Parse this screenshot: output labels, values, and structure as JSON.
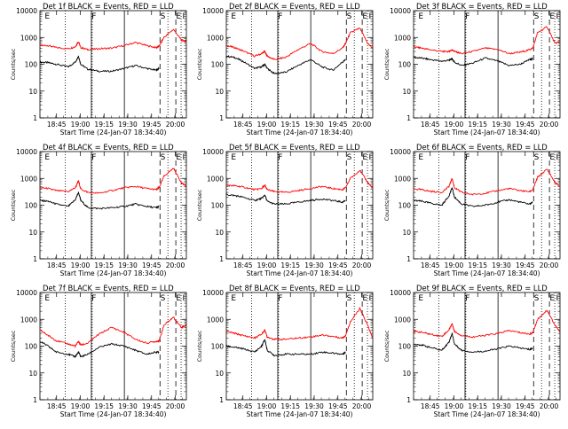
{
  "figure": {
    "start_label": "Start Time (24-Jan-07 18:34:40)",
    "ylabel": "Counts/sec",
    "x_ticks": [
      "18:45",
      "19:00",
      "19:15",
      "19:30",
      "19:45",
      "20:00"
    ],
    "y_ticks": [
      "1",
      "10",
      "100",
      "1000",
      "10000"
    ],
    "colors": {
      "events": "#000000",
      "lld": "#ff0000"
    }
  },
  "chart_data": [
    {
      "type": "line",
      "title": "Det 1f BLACK = Events, RED = LLD",
      "flags": [
        "E",
        "F",
        "S",
        "E",
        "I"
      ],
      "x": [
        "18:34:40",
        "18:39:50",
        "18:45:00",
        "18:52:30",
        "18:57:00",
        "18:59:00",
        "19:00:30",
        "19:05:00",
        "19:12:00",
        "19:20:00",
        "19:28:00",
        "19:35:00",
        "19:42:00",
        "19:48:00",
        "19:50:00",
        "19:53:00",
        "19:59:00",
        "20:04:00",
        "20:07:00"
      ],
      "series": [
        {
          "name": "Events",
          "values": [
            120,
            115,
            100,
            80,
            120,
            200,
            100,
            65,
            55,
            55,
            70,
            90,
            70,
            60,
            70,
            null,
            null,
            null,
            null
          ]
        },
        {
          "name": "LLD",
          "values": [
            500,
            500,
            420,
            380,
            450,
            700,
            420,
            350,
            380,
            400,
            500,
            650,
            500,
            420,
            480,
            1000,
            2000,
            800,
            700
          ]
        }
      ]
    },
    {
      "type": "line",
      "title": "Det 2f BLACK = Events, RED = LLD",
      "flags": [
        "E",
        "F",
        "S",
        "E",
        "I"
      ],
      "x": [
        "18:34:40",
        "18:39:50",
        "18:45:00",
        "18:52:30",
        "18:57:00",
        "18:59:00",
        "19:00:30",
        "19:05:00",
        "19:12:00",
        "19:20:00",
        "19:28:00",
        "19:35:00",
        "19:42:00",
        "19:48:00",
        "19:50:00",
        "19:53:00",
        "19:59:00",
        "20:04:00",
        "20:07:00"
      ],
      "series": [
        {
          "name": "Events",
          "values": [
            200,
            180,
            130,
            70,
            80,
            100,
            70,
            45,
            50,
            90,
            150,
            80,
            60,
            120,
            150,
            null,
            null,
            null,
            null
          ]
        },
        {
          "name": "LLD",
          "values": [
            500,
            420,
            320,
            200,
            250,
            300,
            200,
            150,
            180,
            350,
            600,
            300,
            250,
            400,
            600,
            1500,
            2200,
            600,
            400
          ]
        }
      ]
    },
    {
      "type": "line",
      "title": "Det 3f BLACK = Events, RED = LLD",
      "flags": [
        "E",
        "F",
        "S",
        "E",
        "I"
      ],
      "x": [
        "18:34:40",
        "18:39:50",
        "18:45:00",
        "18:52:30",
        "18:57:00",
        "18:59:00",
        "19:00:30",
        "19:05:00",
        "19:12:00",
        "19:20:00",
        "19:28:00",
        "19:35:00",
        "19:42:00",
        "19:48:00",
        "19:50:00",
        "19:53:00",
        "19:59:00",
        "20:04:00",
        "20:07:00"
      ],
      "series": [
        {
          "name": "Events",
          "values": [
            180,
            170,
            150,
            130,
            140,
            160,
            120,
            90,
            110,
            170,
            130,
            90,
            100,
            150,
            160,
            null,
            null,
            null,
            null
          ]
        },
        {
          "name": "LLD",
          "values": [
            450,
            400,
            350,
            300,
            300,
            350,
            300,
            250,
            300,
            400,
            350,
            250,
            280,
            350,
            400,
            1500,
            2500,
            600,
            700
          ]
        }
      ]
    },
    {
      "type": "line",
      "title": "Det 4f BLACK = Events, RED = LLD",
      "flags": [
        "E",
        "F",
        "S",
        "E",
        "I"
      ],
      "x": [
        "18:34:40",
        "18:39:50",
        "18:45:00",
        "18:52:30",
        "18:57:00",
        "18:59:00",
        "19:00:30",
        "19:05:00",
        "19:12:00",
        "19:20:00",
        "19:28:00",
        "19:35:00",
        "19:42:00",
        "19:48:00",
        "19:50:00",
        "19:53:00",
        "19:59:00",
        "20:04:00",
        "20:07:00"
      ],
      "series": [
        {
          "name": "Events",
          "values": [
            150,
            140,
            110,
            90,
            160,
            300,
            150,
            80,
            75,
            80,
            90,
            110,
            90,
            80,
            90,
            null,
            null,
            null,
            null
          ]
        },
        {
          "name": "LLD",
          "values": [
            450,
            420,
            350,
            320,
            450,
            800,
            400,
            300,
            280,
            350,
            450,
            500,
            420,
            380,
            450,
            1200,
            2400,
            700,
            500
          ]
        }
      ]
    },
    {
      "type": "line",
      "title": "Det 5f BLACK = Events, RED = LLD",
      "flags": [
        "E",
        "F",
        "S",
        "E",
        "I"
      ],
      "x": [
        "18:34:40",
        "18:39:50",
        "18:45:00",
        "18:52:30",
        "18:57:00",
        "18:59:00",
        "19:00:30",
        "19:05:00",
        "19:12:00",
        "19:20:00",
        "19:28:00",
        "19:35:00",
        "19:42:00",
        "19:48:00",
        "19:50:00",
        "19:53:00",
        "19:59:00",
        "20:04:00",
        "20:07:00"
      ],
      "series": [
        {
          "name": "Events",
          "values": [
            250,
            230,
            200,
            150,
            180,
            240,
            140,
            110,
            110,
            130,
            150,
            170,
            150,
            130,
            150,
            null,
            null,
            null,
            null
          ]
        },
        {
          "name": "LLD",
          "values": [
            550,
            530,
            480,
            380,
            420,
            550,
            380,
            320,
            300,
            350,
            420,
            500,
            420,
            380,
            450,
            1000,
            2000,
            700,
            450
          ]
        }
      ]
    },
    {
      "type": "line",
      "title": "Det 6f BLACK = Events, RED = LLD",
      "flags": [
        "E",
        "F",
        "S",
        "E",
        "I"
      ],
      "x": [
        "18:34:40",
        "18:39:50",
        "18:45:00",
        "18:52:30",
        "18:57:00",
        "18:59:00",
        "19:00:30",
        "19:05:00",
        "19:12:00",
        "19:20:00",
        "19:28:00",
        "19:35:00",
        "19:42:00",
        "19:48:00",
        "19:50:00",
        "19:53:00",
        "19:59:00",
        "20:04:00",
        "20:07:00"
      ],
      "series": [
        {
          "name": "Events",
          "values": [
            150,
            140,
            120,
            100,
            220,
            450,
            200,
            110,
            90,
            100,
            130,
            160,
            130,
            110,
            130,
            null,
            null,
            null,
            null
          ]
        },
        {
          "name": "LLD",
          "values": [
            400,
            380,
            330,
            300,
            500,
            1000,
            450,
            300,
            250,
            280,
            350,
            420,
            350,
            320,
            380,
            1100,
            2200,
            700,
            500
          ]
        }
      ]
    },
    {
      "type": "line",
      "title": "Det 7f BLACK = Events, RED = LLD",
      "flags": [
        "E",
        "F",
        "S",
        "E",
        "I"
      ],
      "x": [
        "18:34:40",
        "18:39:50",
        "18:45:00",
        "18:52:30",
        "18:57:00",
        "18:59:00",
        "19:00:30",
        "19:05:00",
        "19:12:00",
        "19:20:00",
        "19:28:00",
        "19:35:00",
        "19:42:00",
        "19:48:00",
        "19:50:00",
        "19:53:00",
        "19:59:00",
        "20:04:00",
        "20:07:00"
      ],
      "series": [
        {
          "name": "Events",
          "values": [
            150,
            100,
            60,
            50,
            40,
            60,
            40,
            50,
            90,
            120,
            100,
            70,
            50,
            60,
            60,
            null,
            null,
            null,
            null
          ]
        },
        {
          "name": "LLD",
          "values": [
            400,
            250,
            160,
            120,
            100,
            150,
            110,
            130,
            280,
            500,
            320,
            180,
            130,
            150,
            160,
            600,
            1200,
            500,
            600
          ]
        }
      ]
    },
    {
      "type": "line",
      "title": "Det 8f BLACK = Events, RED = LLD",
      "flags": [
        "E",
        "F",
        "S",
        "E",
        "I"
      ],
      "x": [
        "18:34:40",
        "18:39:50",
        "18:45:00",
        "18:52:30",
        "18:57:00",
        "18:59:00",
        "19:00:30",
        "19:05:00",
        "19:12:00",
        "19:20:00",
        "19:28:00",
        "19:35:00",
        "19:42:00",
        "19:48:00",
        "19:50:00",
        "19:53:00",
        "19:59:00",
        "20:04:00",
        "20:07:00"
      ],
      "series": [
        {
          "name": "Events",
          "values": [
            100,
            90,
            80,
            60,
            100,
            180,
            70,
            45,
            50,
            50,
            50,
            60,
            55,
            50,
            60,
            null,
            null,
            null,
            null
          ]
        },
        {
          "name": "LLD",
          "values": [
            350,
            300,
            250,
            200,
            280,
            400,
            220,
            180,
            180,
            200,
            220,
            260,
            230,
            200,
            250,
            800,
            2500,
            600,
            200
          ]
        }
      ]
    },
    {
      "type": "line",
      "title": "Det 9f BLACK = Events, RED = LLD",
      "flags": [
        "E",
        "F",
        "S",
        "E",
        "I"
      ],
      "x": [
        "18:34:40",
        "18:39:50",
        "18:45:00",
        "18:52:30",
        "18:57:00",
        "18:59:00",
        "19:00:30",
        "19:05:00",
        "19:12:00",
        "19:20:00",
        "19:28:00",
        "19:35:00",
        "19:42:00",
        "19:48:00",
        "19:50:00",
        "19:53:00",
        "19:59:00",
        "20:04:00",
        "20:07:00"
      ],
      "series": [
        {
          "name": "Events",
          "values": [
            120,
            110,
            90,
            70,
            140,
            300,
            120,
            70,
            60,
            65,
            80,
            100,
            85,
            75,
            85,
            null,
            null,
            null,
            null
          ]
        },
        {
          "name": "LLD",
          "values": [
            350,
            330,
            280,
            230,
            400,
            700,
            350,
            250,
            220,
            250,
            300,
            380,
            320,
            280,
            320,
            1000,
            2200,
            600,
            350
          ]
        }
      ]
    }
  ]
}
